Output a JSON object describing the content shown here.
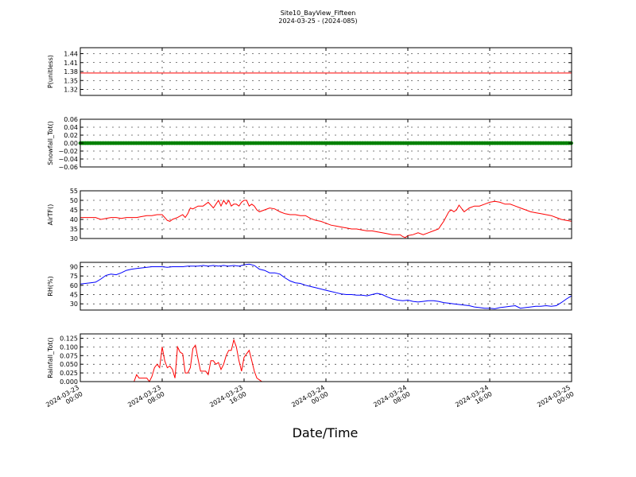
{
  "figure": {
    "title": "Site10_BayView_Fifteen",
    "subtitle": "2024-03-25 - (2024-085)",
    "xlabel": "Date/Time"
  },
  "chart_data": [
    {
      "type": "line",
      "ylabel": "P(unitless)",
      "series": [
        {
          "color": "#ff0000",
          "x": [
            0,
            48
          ],
          "y": [
            1.375,
            1.375
          ]
        }
      ],
      "ylim": [
        1.3,
        1.46
      ],
      "yticks": [
        1.32,
        1.35,
        1.38,
        1.41,
        1.44
      ],
      "ytick_labels": [
        "1.32",
        "1.35",
        "1.38",
        "1.41",
        "1.44"
      ],
      "grid": true,
      "xlim": [
        0,
        48
      ]
    },
    {
      "type": "line",
      "ylabel": "Snowfall_Tot()",
      "series": [
        {
          "color": "#008000",
          "marker": "dot",
          "x": [
            0,
            48
          ],
          "y": [
            0,
            0
          ]
        }
      ],
      "ylim": [
        -0.06,
        0.06
      ],
      "yticks": [
        -0.06,
        -0.04,
        -0.02,
        0.0,
        0.02,
        0.04,
        0.06
      ],
      "ytick_labels": [
        "−0.06",
        "−0.04",
        "−0.02",
        "0.00",
        "0.02",
        "0.04",
        "0.06"
      ],
      "grid": true,
      "xlim": [
        0,
        48
      ]
    },
    {
      "type": "line",
      "ylabel": "AirTF()",
      "series": [
        {
          "color": "#ff0000",
          "x": [
            0,
            0.5,
            1,
            1.5,
            2,
            2.5,
            3,
            3.5,
            4,
            4.5,
            5,
            5.5,
            6,
            6.5,
            7,
            7.5,
            8,
            8.25,
            8.5,
            8.75,
            9,
            9.5,
            10,
            10.25,
            10.5,
            10.75,
            11,
            11.5,
            12,
            12.5,
            13,
            13.25,
            13.5,
            13.75,
            14,
            14.25,
            14.5,
            14.75,
            15,
            15.25,
            15.5,
            15.75,
            16,
            16.25,
            16.5,
            16.75,
            17,
            17.25,
            17.5,
            18,
            18.5,
            19,
            19.5,
            20,
            20.5,
            21,
            21.5,
            22,
            22.5,
            23,
            23.5,
            24,
            24.5,
            25,
            25.5,
            26,
            26.5,
            27,
            27.5,
            28,
            28.5,
            29,
            29.5,
            30,
            30.5,
            31,
            31.25,
            31.5,
            31.75,
            32,
            32.5,
            33,
            33.5,
            34,
            34.5,
            35,
            35.25,
            35.5,
            36,
            36.25,
            36.5,
            36.75,
            37,
            37.5,
            38,
            38.5,
            39,
            39.5,
            40,
            40.5,
            41,
            41.5,
            42,
            42.5,
            43,
            43.5,
            44,
            44.5,
            45,
            45.5,
            46,
            46.5,
            47,
            47.5,
            48
          ],
          "y": [
            41,
            41,
            41,
            41,
            40,
            40.5,
            41,
            41,
            40.5,
            41,
            41,
            41,
            41.5,
            42,
            42,
            42.5,
            42.5,
            41,
            39.5,
            39,
            40,
            41,
            42.5,
            41,
            43,
            46,
            45.5,
            47,
            47,
            49,
            46,
            48,
            50,
            47,
            50,
            48,
            50,
            47,
            48,
            48,
            47,
            49,
            50,
            50,
            47,
            48,
            47,
            45,
            44,
            45,
            46,
            45.5,
            44,
            43,
            42.5,
            42.5,
            42,
            42,
            40.5,
            39.5,
            39,
            38,
            37,
            36.5,
            36,
            35.5,
            35,
            35,
            34.5,
            34,
            34,
            33.5,
            33,
            32.5,
            32,
            32,
            32,
            31,
            30.5,
            31.5,
            32,
            33,
            32,
            33,
            34,
            35,
            37,
            39,
            44,
            45,
            44,
            45,
            47.5,
            44,
            46,
            47,
            47,
            48,
            49,
            49.5,
            49,
            48,
            48,
            47,
            46,
            45,
            44,
            43.5,
            43,
            42.5,
            42,
            41,
            40,
            39.5,
            39
          ]
        }
      ],
      "ylim": [
        30,
        55
      ],
      "yticks": [
        30,
        35,
        40,
        45,
        50,
        55
      ],
      "ytick_labels": [
        "30",
        "35",
        "40",
        "45",
        "50",
        "55"
      ],
      "grid": true,
      "xlim": [
        0,
        48
      ]
    },
    {
      "type": "line",
      "ylabel": "RH(%)",
      "series": [
        {
          "color": "#0000ff",
          "x": [
            0,
            0.5,
            1,
            1.5,
            2,
            2.5,
            3,
            3.5,
            4,
            4.5,
            5,
            5.5,
            6,
            6.5,
            7,
            7.5,
            8,
            8.5,
            9,
            9.5,
            10,
            10.5,
            11,
            11.5,
            12,
            12.5,
            13,
            13.5,
            14,
            14.5,
            15,
            15.5,
            16,
            16.5,
            17,
            17.5,
            18,
            18.5,
            19,
            19.5,
            20,
            20.5,
            21,
            21.5,
            22,
            22.5,
            23,
            23.5,
            24,
            24.5,
            25,
            25.5,
            26,
            26.5,
            27,
            27.5,
            28,
            28.5,
            29,
            29.5,
            30,
            30.5,
            31,
            31.5,
            32,
            32.5,
            33,
            33.5,
            34,
            34.5,
            35,
            35.5,
            36,
            36.5,
            37,
            37.5,
            38,
            38.5,
            39,
            39.5,
            40,
            40.5,
            41,
            41.5,
            42,
            42.5,
            43,
            43.5,
            44,
            44.5,
            45,
            45.5,
            46,
            46.5,
            47,
            47.5,
            48
          ],
          "y": [
            62,
            63,
            64,
            65,
            70,
            76,
            78,
            77,
            80,
            84,
            86,
            87,
            88,
            89,
            90,
            90,
            90,
            89,
            90,
            90,
            90,
            91,
            91,
            91,
            92,
            91,
            92,
            91,
            92,
            91,
            92,
            91,
            93,
            94,
            92,
            86,
            84,
            80,
            80,
            78,
            72,
            67,
            64,
            63,
            60,
            58,
            56,
            54,
            52,
            50,
            48,
            46,
            45,
            45,
            44,
            44,
            43,
            45,
            47,
            45,
            41,
            38,
            36,
            35,
            36,
            34,
            33,
            34,
            35,
            35,
            34,
            32,
            31,
            30,
            29,
            28,
            27,
            25,
            24,
            23,
            23,
            22,
            24,
            25,
            26,
            27,
            23,
            24,
            25,
            26,
            26,
            27,
            26,
            27,
            32,
            38,
            43
          ]
        }
      ],
      "ylim": [
        20,
        97
      ],
      "yticks": [
        30,
        45,
        60,
        75,
        90
      ],
      "ytick_labels": [
        "30",
        "45",
        "60",
        "75",
        "90"
      ],
      "grid": true,
      "xlim": [
        0,
        48
      ]
    },
    {
      "type": "line",
      "ylabel": "Rainfall_Tot()",
      "series": [
        {
          "color": "#ff0000",
          "x": [
            0,
            2,
            4,
            5,
            5.25,
            5.5,
            5.75,
            6,
            6.25,
            6.5,
            6.75,
            7,
            7.25,
            7.5,
            7.75,
            8,
            8.25,
            8.5,
            8.75,
            9,
            9.25,
            9.5,
            9.75,
            10,
            10.25,
            10.5,
            10.75,
            11,
            11.25,
            11.5,
            11.75,
            12,
            12.25,
            12.5,
            12.75,
            13,
            13.25,
            13.5,
            13.75,
            14,
            14.25,
            14.5,
            14.75,
            15,
            15.25,
            15.5,
            15.75,
            16,
            16.25,
            16.5,
            16.75,
            17,
            17.25,
            17.5,
            17.75,
            18,
            20,
            24,
            30,
            36,
            42,
            48
          ],
          "y": [
            0,
            0,
            0,
            0,
            0,
            0.02,
            0.01,
            0.01,
            0.01,
            0.01,
            0,
            0.015,
            0.04,
            0.05,
            0.04,
            0.1,
            0.06,
            0.04,
            0.045,
            0.035,
            0.01,
            0.1,
            0.085,
            0.08,
            0.025,
            0.025,
            0.04,
            0.095,
            0.105,
            0.065,
            0.03,
            0.03,
            0.03,
            0.02,
            0.06,
            0.06,
            0.05,
            0.055,
            0.035,
            0.05,
            0.075,
            0.09,
            0.09,
            0.12,
            0.1,
            0.06,
            0.03,
            0.07,
            0.08,
            0.09,
            0.06,
            0.03,
            0.01,
            0.005,
            0,
            0,
            0,
            0,
            0,
            0,
            0,
            0
          ]
        }
      ],
      "ylim": [
        0,
        0.1375
      ],
      "yticks": [
        0.0,
        0.025,
        0.05,
        0.075,
        0.1,
        0.125
      ],
      "ytick_labels": [
        "0.000",
        "0.025",
        "0.050",
        "0.075",
        "0.100",
        "0.125"
      ],
      "grid": true,
      "xlim": [
        0,
        48
      ],
      "xticks": [
        0,
        8,
        16,
        24,
        32,
        40,
        48
      ],
      "xtick_labels": [
        [
          "2024-03-23",
          "00:00"
        ],
        [
          "2024-03-23",
          "08:00"
        ],
        [
          "2024-03-23",
          "16:00"
        ],
        [
          "2024-03-24",
          "00:00"
        ],
        [
          "2024-03-24",
          "08:00"
        ],
        [
          "2024-03-24",
          "16:00"
        ],
        [
          "2024-03-25",
          "00:00"
        ]
      ]
    }
  ]
}
